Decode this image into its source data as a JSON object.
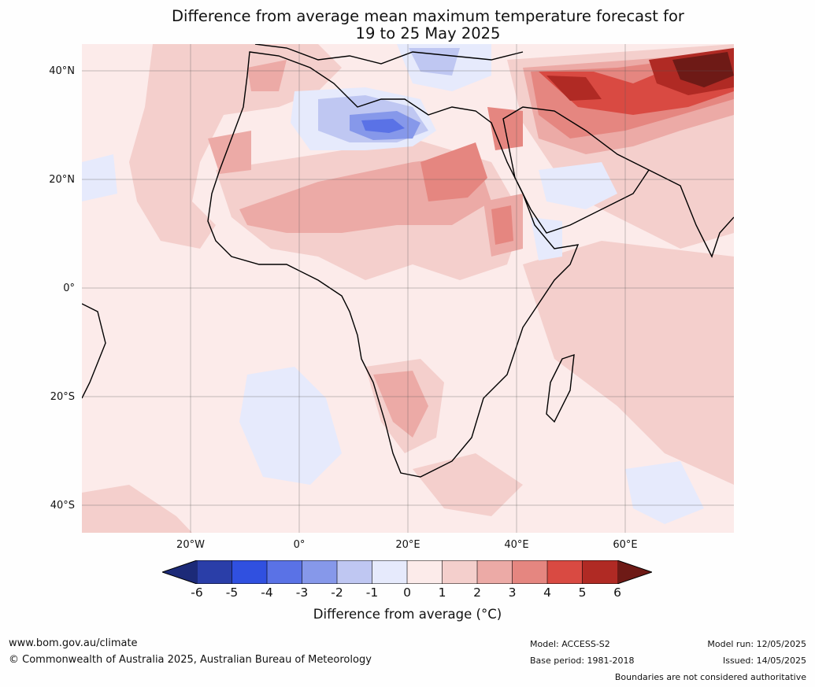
{
  "title": {
    "line1": "Difference from average mean maximum temperature forecast for",
    "line2": "19 to 25 May 2025"
  },
  "map": {
    "region": "Africa and Middle East",
    "lat_labels": [
      "40°N",
      "20°N",
      "0°",
      "20°S",
      "40°S"
    ],
    "lon_labels": [
      "20°W",
      "0°",
      "20°E",
      "40°E",
      "60°E"
    ]
  },
  "colorbar": {
    "ticks": [
      "-6",
      "-5",
      "-4",
      "-3",
      "-2",
      "-1",
      "0",
      "1",
      "2",
      "3",
      "4",
      "5",
      "6"
    ],
    "colors": [
      "#2a3ea8",
      "#3050e0",
      "#5a72e6",
      "#8698ea",
      "#bfc7f2",
      "#e6eafc",
      "#fcebea",
      "#f4cfcc",
      "#ecaaa6",
      "#e58680",
      "#d94a42",
      "#b02a24"
    ],
    "low_extend_color": "#1c2a78",
    "high_extend_color": "#6e1a16",
    "label": "Difference from average (°C)"
  },
  "footer": {
    "url": "www.bom.gov.au/climate",
    "copyright": "© Commonwealth of Australia 2025, Australian Bureau of Meteorology",
    "model": "Model: ACCESS-S2",
    "base_period": "Base period: 1981-2018",
    "model_run": "Model run: 12/05/2025",
    "issued": "Issued: 14/05/2025",
    "disclaimer": "Boundaries are not considered authoritative"
  }
}
